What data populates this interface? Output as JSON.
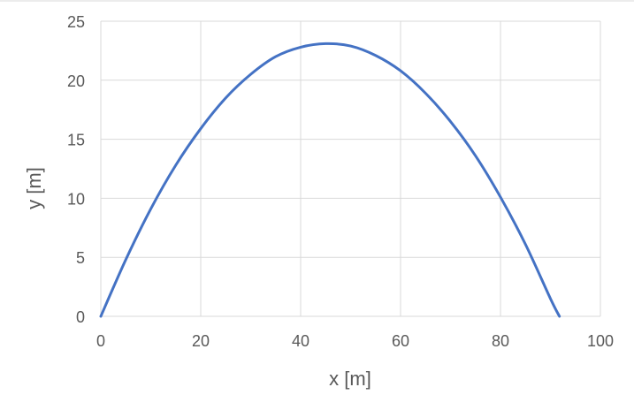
{
  "chart_data": {
    "type": "line",
    "title": "",
    "xlabel": "x [m]",
    "ylabel": "y [m]",
    "xlim": [
      0,
      100
    ],
    "ylim": [
      0,
      25
    ],
    "x_ticks": [
      0,
      20,
      40,
      60,
      80,
      100
    ],
    "y_ticks": [
      0,
      5,
      10,
      15,
      20,
      25
    ],
    "x_tick_labels": [
      "0",
      "20",
      "40",
      "60",
      "80",
      "100"
    ],
    "y_tick_labels": [
      "0",
      "5",
      "10",
      "15",
      "20",
      "25"
    ],
    "grid": true,
    "legend": "none",
    "series": [
      {
        "color": "#4472c4",
        "x": [
          0,
          5,
          10,
          15,
          20,
          25,
          30,
          35,
          40,
          45,
          50,
          55,
          60,
          65,
          70,
          75,
          80,
          85,
          90,
          91.8
        ],
        "y": [
          0,
          4.8,
          9.1,
          12.8,
          15.9,
          18.5,
          20.5,
          22.0,
          22.8,
          23.1,
          22.9,
          22.1,
          20.8,
          18.9,
          16.5,
          13.6,
          10.1,
          6.1,
          1.5,
          0
        ]
      }
    ]
  }
}
